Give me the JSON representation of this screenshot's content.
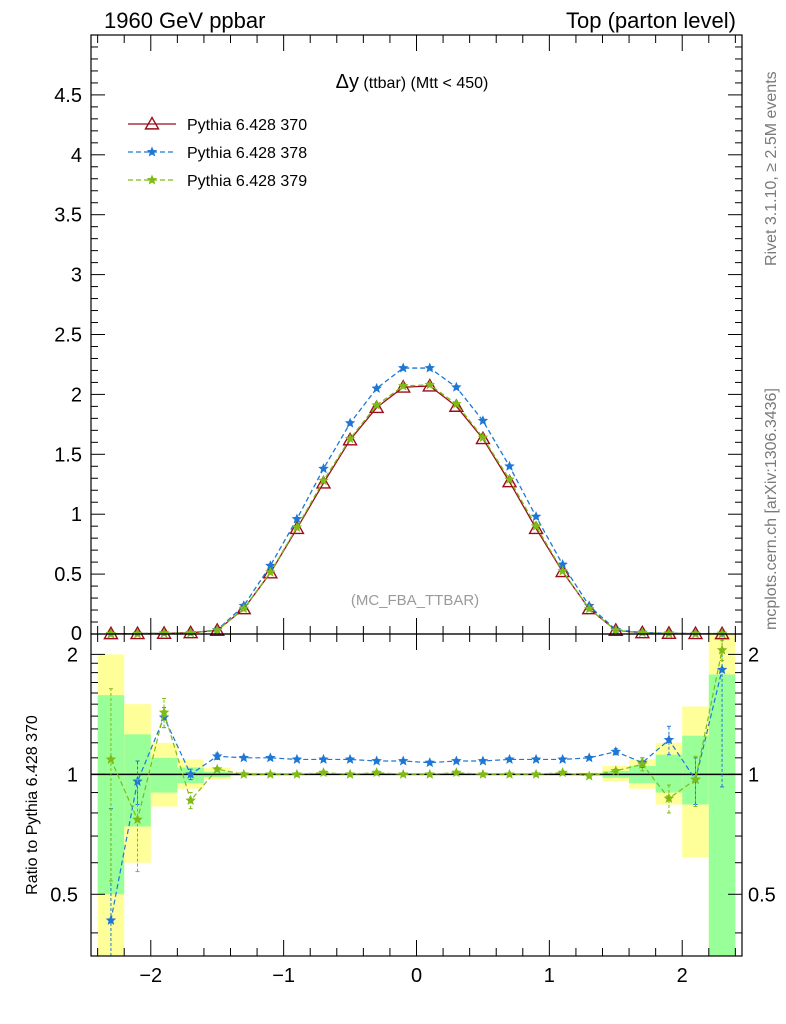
{
  "header": {
    "left": "1960 GeV ppbar",
    "right": "Top (parton level)"
  },
  "side_labels": {
    "rivet": "Rivet 3.1.10, ≥ 2.5M events",
    "mcplots": "mcplots.cern.ch [arXiv:1306.3436]"
  },
  "chart_data": [
    {
      "type": "line",
      "panel": "main",
      "title_symbol": "Δy",
      "title_rest": " (ttbar) (Mtt < 450)",
      "watermark": "(MC_FBA_TTBAR)",
      "xlabel": "",
      "ylabel": "",
      "xlim": [
        -2.45,
        2.45
      ],
      "ylim": [
        0,
        5.0
      ],
      "yticks": [
        0.5,
        1,
        1.5,
        2,
        2.5,
        3,
        3.5,
        4,
        4.5
      ],
      "ytick_labels": [
        "0.5",
        "1",
        "1.5",
        "2",
        "2.5",
        "3",
        "3.5",
        "4",
        "4.5"
      ],
      "partial_tick_label": "0",
      "legend_position": "top-left",
      "x": [
        -2.3,
        -2.1,
        -1.9,
        -1.7,
        -1.5,
        -1.3,
        -1.1,
        -0.9,
        -0.7,
        -0.5,
        -0.3,
        -0.1,
        0.1,
        0.3,
        0.5,
        0.7,
        0.9,
        1.1,
        1.3,
        1.5,
        1.7,
        1.9,
        2.1,
        2.3
      ],
      "series": [
        {
          "name": "Pythia 6.428 370",
          "color": "#9b0d1c",
          "marker": "triangle",
          "dashed": false,
          "values": [
            0.002,
            0.003,
            0.005,
            0.01,
            0.03,
            0.21,
            0.51,
            0.88,
            1.26,
            1.62,
            1.89,
            2.06,
            2.07,
            1.9,
            1.63,
            1.27,
            0.88,
            0.52,
            0.21,
            0.03,
            0.01,
            0.005,
            0.003,
            0.002
          ]
        },
        {
          "name": "Pythia 6.428 378",
          "color": "#1f77d4",
          "marker": "star",
          "dashed": true,
          "values": [
            0.001,
            0.003,
            0.007,
            0.01,
            0.034,
            0.236,
            0.57,
            0.96,
            1.38,
            1.76,
            2.05,
            2.22,
            2.22,
            2.06,
            1.78,
            1.4,
            0.98,
            0.58,
            0.235,
            0.036,
            0.012,
            0.006,
            0.003,
            0.004
          ]
        },
        {
          "name": "Pythia 6.428 379",
          "color": "#7fbb14",
          "marker": "star",
          "dashed": true,
          "values": [
            0.002,
            0.002,
            0.007,
            0.009,
            0.031,
            0.212,
            0.515,
            0.89,
            1.28,
            1.63,
            1.91,
            2.07,
            2.08,
            1.92,
            1.64,
            1.29,
            0.9,
            0.525,
            0.21,
            0.031,
            0.011,
            0.0045,
            0.003,
            0.004
          ]
        }
      ]
    },
    {
      "type": "line",
      "panel": "ratio",
      "ylabel": "Ratio to Pythia 6.428 370",
      "xlim": [
        -2.45,
        2.45
      ],
      "ylim": [
        0.35,
        2.25
      ],
      "log_y": true,
      "yticks": [
        0.5,
        1,
        2
      ],
      "ytick_labels": [
        "0.5",
        "1",
        "2"
      ],
      "xticks": [
        -2,
        -1,
        0,
        1,
        2
      ],
      "xtick_labels": [
        "−2",
        "−1",
        "0",
        "1",
        "2"
      ],
      "x": [
        -2.3,
        -2.1,
        -1.9,
        -1.7,
        -1.5,
        -1.3,
        -1.1,
        -0.9,
        -0.7,
        -0.5,
        -0.3,
        -0.1,
        0.1,
        0.3,
        0.5,
        0.7,
        0.9,
        1.1,
        1.3,
        1.5,
        1.7,
        1.9,
        2.1,
        2.3
      ],
      "bands": {
        "bin_edges": [
          -2.4,
          -2.2,
          -2.0,
          -1.8,
          -1.6,
          -1.4,
          -1.2,
          -1.0,
          -0.8,
          -0.6,
          -0.4,
          -0.2,
          0.0,
          0.2,
          0.4,
          0.6,
          0.8,
          1.0,
          1.2,
          1.4,
          1.6,
          1.8,
          2.0,
          2.2,
          2.4
        ],
        "outer_low": [
          0.3,
          0.6,
          0.83,
          0.92,
          0.97,
          0.99,
          0.993,
          0.995,
          0.996,
          0.997,
          0.997,
          0.998,
          0.998,
          0.997,
          0.997,
          0.996,
          0.995,
          0.993,
          0.99,
          0.96,
          0.92,
          0.84,
          0.62,
          0.3
        ],
        "outer_high": [
          2.0,
          1.5,
          1.2,
          1.09,
          1.04,
          1.01,
          1.007,
          1.005,
          1.004,
          1.003,
          1.003,
          1.002,
          1.002,
          1.003,
          1.003,
          1.004,
          1.005,
          1.007,
          1.01,
          1.05,
          1.09,
          1.2,
          1.48,
          2.25
        ],
        "inner_low": [
          0.5,
          0.74,
          0.9,
          0.95,
          0.985,
          0.995,
          0.997,
          0.998,
          0.998,
          0.999,
          0.999,
          0.999,
          0.999,
          0.999,
          0.999,
          0.998,
          0.998,
          0.997,
          0.995,
          0.98,
          0.95,
          0.9,
          0.84,
          0.3
        ],
        "inner_high": [
          1.58,
          1.26,
          1.1,
          1.04,
          1.015,
          1.005,
          1.003,
          1.002,
          1.002,
          1.001,
          1.001,
          1.001,
          1.001,
          1.001,
          1.001,
          1.002,
          1.002,
          1.003,
          1.005,
          1.02,
          1.05,
          1.12,
          1.25,
          1.78
        ]
      },
      "series": [
        {
          "name": "Pythia 6.428 378",
          "color": "#1f77d4",
          "values": [
            0.43,
            0.96,
            1.39,
            1.0,
            1.11,
            1.1,
            1.1,
            1.09,
            1.09,
            1.09,
            1.08,
            1.08,
            1.07,
            1.08,
            1.08,
            1.09,
            1.09,
            1.09,
            1.1,
            1.14,
            1.07,
            1.22,
            0.97,
            1.83
          ],
          "err": [
            0.39,
            0.12,
            0.08,
            0.03,
            0.02,
            0.01,
            0.01,
            0.01,
            0.01,
            0.01,
            0.01,
            0.01,
            0.01,
            0.01,
            0.01,
            0.01,
            0.01,
            0.01,
            0.01,
            0.02,
            0.03,
            0.1,
            0.13,
            0.9
          ]
        },
        {
          "name": "Pythia 6.428 379",
          "color": "#7fbb14",
          "values": [
            1.09,
            0.77,
            1.43,
            0.86,
            1.03,
            1.0,
            1.0,
            1.0,
            1.01,
            1.0,
            1.01,
            1.0,
            1.0,
            1.01,
            1.0,
            1.0,
            1.0,
            1.01,
            0.99,
            1.02,
            1.06,
            0.87,
            0.97,
            2.05
          ],
          "err": [
            0.55,
            0.2,
            0.12,
            0.04,
            0.01,
            0.01,
            0.005,
            0.005,
            0.005,
            0.005,
            0.005,
            0.005,
            0.005,
            0.005,
            0.005,
            0.005,
            0.005,
            0.005,
            0.01,
            0.01,
            0.04,
            0.07,
            0.14,
            0.12
          ]
        }
      ]
    }
  ]
}
